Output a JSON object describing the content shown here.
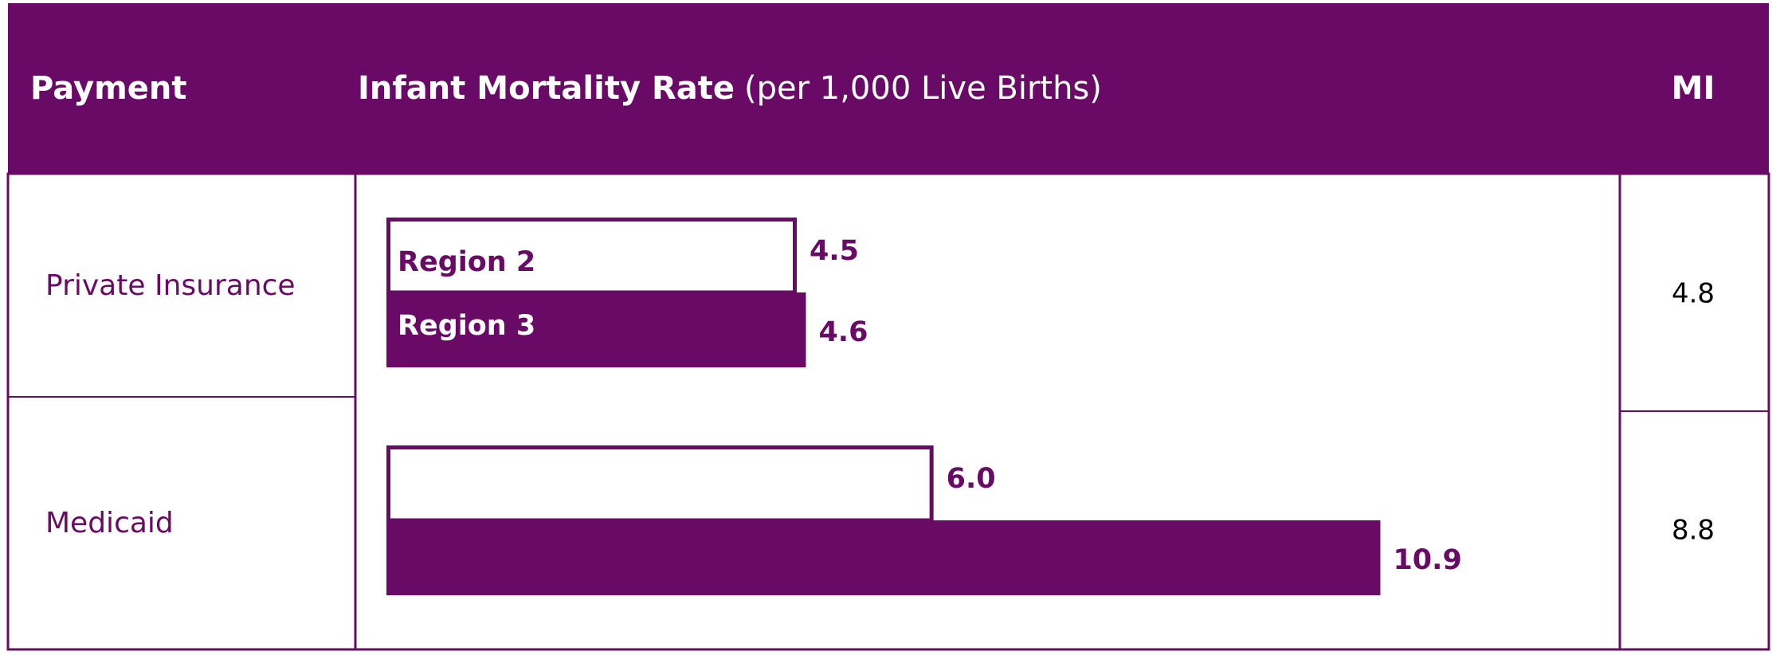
{
  "chart_data": {
    "type": "bar",
    "orientation": "horizontal",
    "title": "Infant Mortality Rate",
    "subtitle": "(per 1,000 Live Births)",
    "category_label": "Payment",
    "categories": [
      "Private Insurance",
      "Medicaid"
    ],
    "series": [
      {
        "name": "Region 2",
        "color": "#6a0a67",
        "fill": "none",
        "values": [
          4.5,
          6.0
        ],
        "value_labels": [
          "4.5",
          "6.0"
        ]
      },
      {
        "name": "Region 3",
        "color": "#6a0a67",
        "fill": "solid",
        "values": [
          4.6,
          10.9
        ],
        "value_labels": [
          "4.6",
          "10.9"
        ]
      }
    ],
    "xlim": [
      0,
      13.5
    ],
    "mi": {
      "label": "MI",
      "values": [
        4.8,
        8.8
      ]
    }
  }
}
